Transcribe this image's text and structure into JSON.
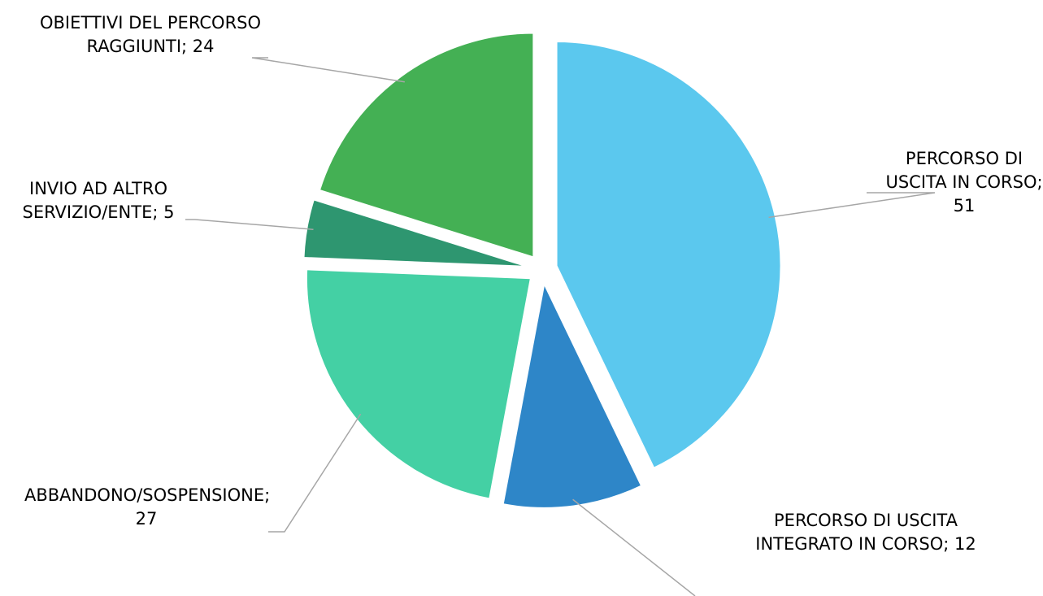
{
  "chart_data": {
    "type": "pie",
    "title": "",
    "categories": [
      "PERCORSO DI USCITA IN CORSO",
      "PERCORSO DI USCITA INTEGRATO IN CORSO",
      "ABBANDONO/SOSPENSIONE",
      "INVIO AD ALTRO SERVIZIO/ENTE",
      "OBIETTIVI DEL PERCORSO RAGGIUNTI"
    ],
    "values": [
      51,
      12,
      27,
      5,
      24
    ],
    "colors": [
      "#5BC8EE",
      "#2E86C8",
      "#44D0A4",
      "#2E9670",
      "#44B054"
    ],
    "exploded": true,
    "data_labels": [
      {
        "lines": [
          "PERCORSO DI",
          "USCITA IN CORSO;",
          "51"
        ]
      },
      {
        "lines": [
          "PERCORSO DI USCITA",
          "INTEGRATO IN CORSO; 12"
        ]
      },
      {
        "lines": [
          "ABBANDONO/SOSPENSIONE;",
          "27"
        ]
      },
      {
        "lines": [
          "INVIO AD ALTRO",
          "SERVIZIO/ENTE; 5"
        ]
      },
      {
        "lines": [
          "OBIETTIVI DEL PERCORSO",
          "RAGGIUNTI; 24"
        ]
      }
    ],
    "leader_color": "#A6A6A6",
    "legend": "none"
  }
}
